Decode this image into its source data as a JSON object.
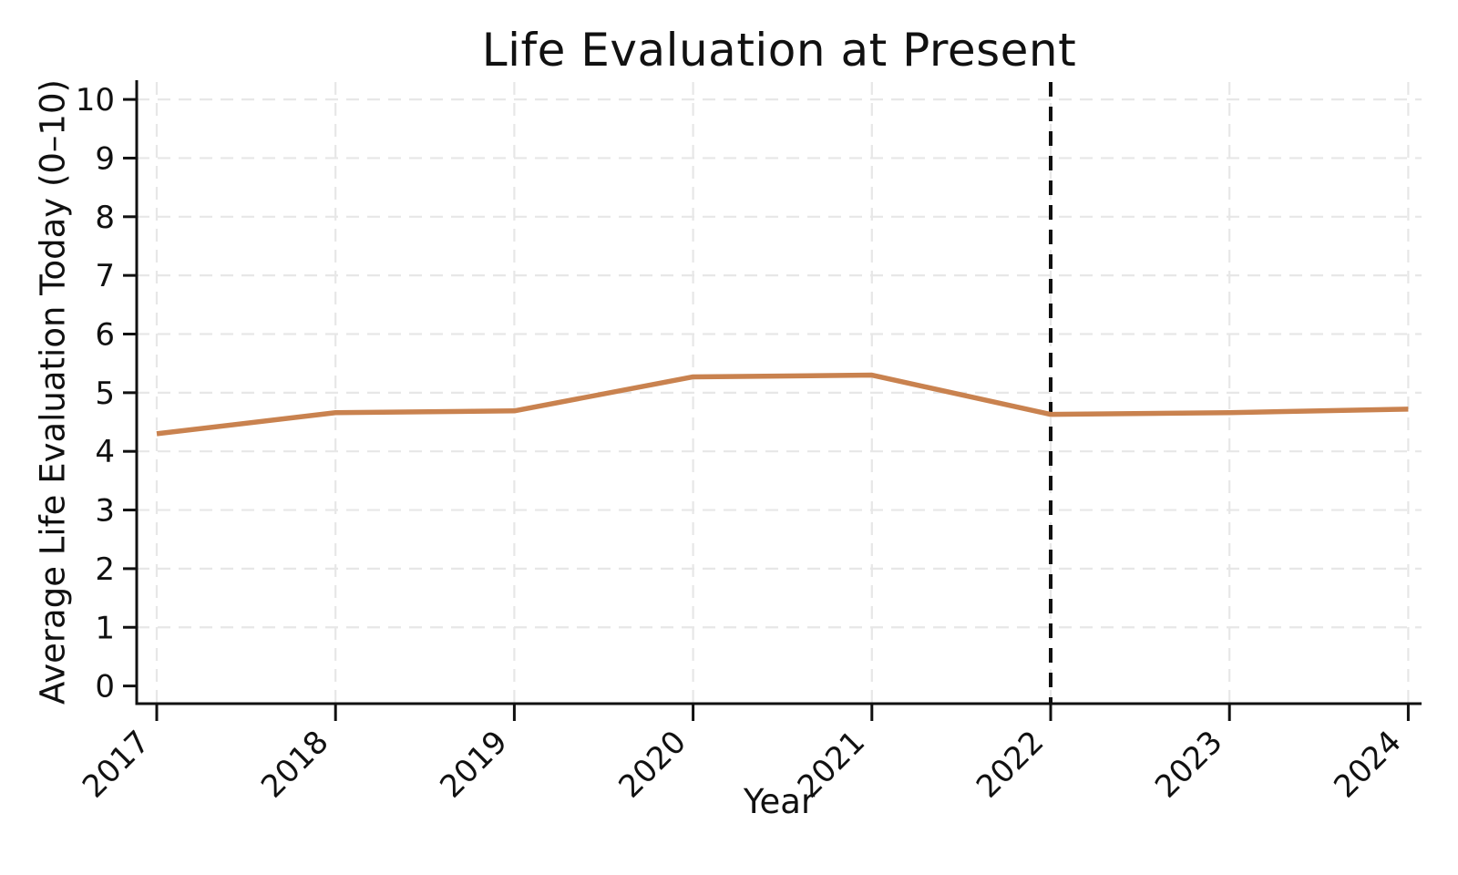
{
  "title": "Life Evaluation at Present",
  "colors": {
    "line": "#C9824F",
    "grid": "#E7E7E7",
    "axis": "#111111",
    "reference_line": "#111111",
    "background": "#FFFFFF"
  },
  "chart_data": {
    "type": "line",
    "title": "Life Evaluation at Present",
    "xlabel": "Year",
    "ylabel": "Average Life Evaluation Today (0–10)",
    "x": [
      2017,
      2018,
      2019,
      2020,
      2021,
      2022,
      2023,
      2024
    ],
    "series": [
      {
        "name": "Average Life Evaluation Today",
        "values": [
          4.3,
          4.66,
          4.69,
          5.27,
          5.3,
          4.63,
          4.66,
          4.72
        ],
        "color": "#C9824F"
      }
    ],
    "ylim": [
      0,
      10
    ],
    "yticks": [
      0,
      1,
      2,
      3,
      4,
      5,
      6,
      7,
      8,
      9,
      10
    ],
    "xticks": [
      2017,
      2018,
      2019,
      2020,
      2021,
      2022,
      2023,
      2024
    ],
    "grid": "dashed, light gray, horizontal ticks 1-10 and vertical at each year",
    "legend_position": "none",
    "reference_vline_x": 2022,
    "reference_vline_style": "black dashed"
  }
}
